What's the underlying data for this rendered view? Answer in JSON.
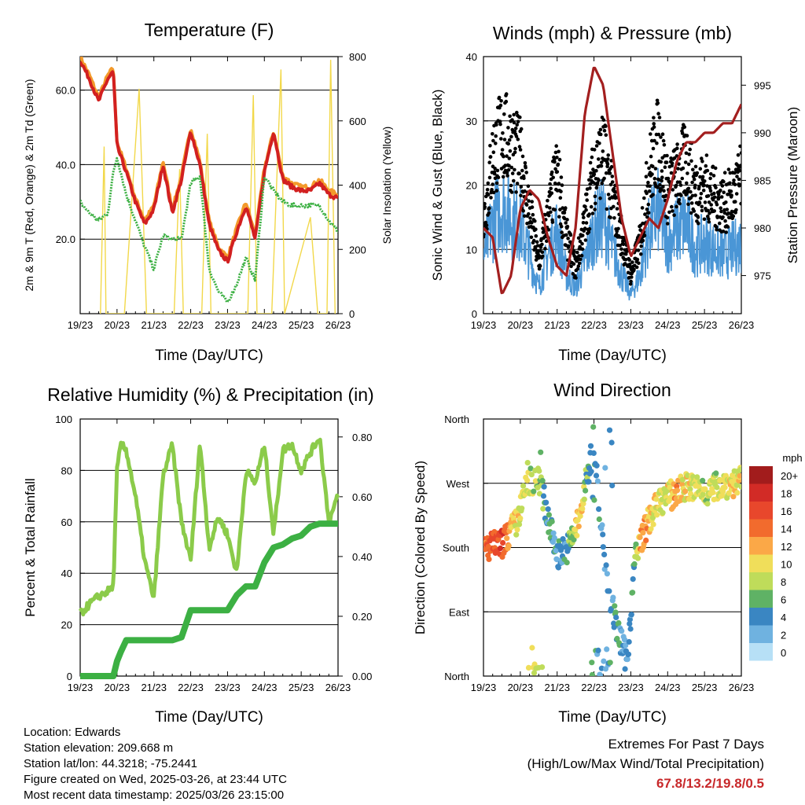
{
  "colors": {
    "temp_red": "#d22020",
    "temp_orange": "#f39a2b",
    "dewpoint_green": "#3cb043",
    "solar_yellow": "#f2d84a",
    "wind_blue": "#4a96d6",
    "gust_black": "#000000",
    "pressure_maroon": "#a31f1f",
    "rh_lightgreen": "#8bcb4a",
    "precip_green": "#3cb043",
    "extremes_red": "#c8282a"
  },
  "x_ticks": [
    "19/23",
    "20/23",
    "21/23",
    "22/23",
    "23/23",
    "24/23",
    "25/23",
    "26/23"
  ],
  "speed_legend": {
    "title": "mph",
    "labels": [
      "20+",
      "18",
      "16",
      "14",
      "12",
      "10",
      "8",
      "6",
      "4",
      "2",
      "0"
    ],
    "colors": [
      "#a21c1c",
      "#d22b26",
      "#e8472c",
      "#f26b2d",
      "#fba847",
      "#f0de5a",
      "#bfdc5a",
      "#5fb265",
      "#3a86c2",
      "#6fb2e0",
      "#b7e0f6"
    ]
  },
  "info": {
    "location": "Location: Edwards",
    "elevation": "Station elevation: 209.668 m",
    "latlon": "Station lat/lon: 44.3218; -75.2441",
    "created": "Figure created on Wed, 2025-03-26, at 23:44 UTC",
    "latest": "Most recent data timestamp: 2025/03/26 23:15:00"
  },
  "extremes": {
    "title": "Extremes For Past 7 Days",
    "subtitle": "(High/Low/Max Wind/Total Precipitation)",
    "values": "67.8/13.2/19.8/0.5"
  },
  "chart_data": [
    {
      "type": "line",
      "title": "Temperature (F)",
      "xlabel": "Time (Day/UTC)",
      "ylabel": "2m & 9m T (Red, Orange) & 2m Td (Green)",
      "ylabel_right": "Solar Insolation (Yellow)",
      "x_ticks": [
        "19/23",
        "20/23",
        "21/23",
        "22/23",
        "23/23",
        "24/23",
        "25/23",
        "26/23"
      ],
      "xlim": [
        0,
        7
      ],
      "ylim": [
        0,
        69
      ],
      "yticks": [
        "20.0",
        "40.0",
        "60.0"
      ],
      "ylim_right": [
        0,
        800
      ],
      "yticks_right": [
        "0",
        "200",
        "400",
        "600",
        "800"
      ],
      "x": [
        0,
        0.25,
        0.5,
        0.75,
        0.9,
        1.0,
        1.25,
        1.5,
        1.75,
        2.0,
        2.25,
        2.5,
        2.75,
        3.0,
        3.25,
        3.5,
        3.75,
        4.0,
        4.25,
        4.5,
        4.75,
        5.0,
        5.25,
        5.5,
        5.75,
        6.0,
        6.25,
        6.5,
        6.75,
        7.0
      ],
      "series": [
        {
          "name": "2m T",
          "values": [
            68,
            63,
            57,
            63,
            65,
            45,
            38,
            30,
            24,
            28,
            40,
            27,
            36,
            49,
            40,
            24,
            17,
            14,
            22,
            29,
            20,
            38,
            49,
            36,
            34,
            33,
            33,
            35,
            32,
            31
          ]
        },
        {
          "name": "9m T",
          "values": [
            69,
            64,
            58,
            64,
            66,
            46,
            39,
            31,
            25,
            29,
            41,
            28,
            37,
            50,
            41,
            25,
            18,
            15,
            23,
            30,
            21,
            39,
            49,
            37,
            35,
            34,
            34,
            36,
            33,
            32
          ]
        },
        {
          "name": "2m Td",
          "values": [
            30,
            27,
            25,
            27,
            38,
            42,
            32,
            25,
            18,
            12,
            21,
            20,
            20,
            35,
            37,
            12,
            6,
            3,
            8,
            15,
            9,
            37,
            33,
            30,
            29,
            29,
            29,
            29,
            25,
            22
          ]
        },
        {
          "name": "Solar Insolation",
          "axis": "right",
          "x": [
            0.55,
            0.65,
            0.7,
            1.2,
            1.6,
            1.8,
            2.55,
            2.7,
            2.8,
            3.3,
            3.45,
            3.55,
            4.55,
            4.7,
            4.8,
            5.2,
            5.45,
            5.55,
            6.25,
            6.45,
            6.7,
            6.8,
            6.92
          ],
          "values": [
            0,
            520,
            0,
            0,
            700,
            0,
            0,
            450,
            0,
            0,
            560,
            0,
            0,
            680,
            0,
            0,
            760,
            0,
            300,
            0,
            0,
            790,
            0
          ]
        }
      ]
    },
    {
      "type": "scatter",
      "title": "Winds (mph) & Pressure (mb)",
      "xlabel": "Time (Day/UTC)",
      "ylabel": "Sonic Wind & Gust (Blue, Black)",
      "ylabel_right": "Station Pressure (Maroon)",
      "x_ticks": [
        "19/23",
        "20/23",
        "21/23",
        "22/23",
        "23/23",
        "24/23",
        "25/23",
        "26/23"
      ],
      "xlim": [
        0,
        7
      ],
      "ylim": [
        0,
        40
      ],
      "yticks": [
        "0",
        "10",
        "20",
        "30",
        "40"
      ],
      "ylim_right": [
        971,
        998
      ],
      "yticks_right": [
        "975",
        "980",
        "985",
        "990",
        "995"
      ],
      "x": [
        0,
        0.25,
        0.5,
        0.75,
        1.0,
        1.25,
        1.5,
        1.75,
        2.0,
        2.25,
        2.5,
        2.75,
        3.0,
        3.25,
        3.5,
        3.75,
        4.0,
        4.25,
        4.5,
        4.75,
        5.0,
        5.25,
        5.5,
        5.75,
        6.0,
        6.25,
        6.5,
        6.75,
        7.0
      ],
      "series": [
        {
          "name": "Sonic Wind",
          "values": [
            9,
            14,
            17,
            15,
            14,
            9,
            4,
            9,
            13,
            6,
            4,
            8,
            13,
            15,
            10,
            6,
            3,
            6,
            13,
            16,
            11,
            13,
            14,
            10,
            11,
            10,
            9,
            10,
            11
          ]
        },
        {
          "name": "Gust",
          "values": [
            14,
            24,
            28,
            26,
            24,
            16,
            8,
            15,
            22,
            12,
            7,
            14,
            22,
            25,
            18,
            12,
            6,
            11,
            22,
            27,
            19,
            21,
            24,
            19,
            20,
            18,
            17,
            18,
            21
          ]
        },
        {
          "name": "Station Pressure",
          "axis": "right",
          "values": [
            980,
            979,
            973,
            975,
            982,
            984,
            983,
            979,
            976,
            975,
            980,
            992,
            997,
            995,
            988,
            981,
            977,
            979,
            981,
            980,
            983,
            987,
            989,
            989,
            990,
            990,
            991,
            991,
            993
          ]
        }
      ]
    },
    {
      "type": "line",
      "title": "Relative Humidity (%) & Precipitation (in)",
      "xlabel": "Time (Day/UTC)",
      "ylabel": "Percent & Total Rainfall",
      "x_ticks": [
        "19/23",
        "20/23",
        "21/23",
        "22/23",
        "23/23",
        "24/23",
        "25/23",
        "26/23"
      ],
      "xlim": [
        0,
        7
      ],
      "ylim": [
        0,
        100
      ],
      "yticks": [
        "0",
        "20",
        "40",
        "60",
        "80",
        "100"
      ],
      "ylim_right": [
        0,
        0.86
      ],
      "yticks_right": [
        "0.00",
        "0.20",
        "0.40",
        "0.60",
        "0.80"
      ],
      "x": [
        0,
        0.25,
        0.5,
        0.75,
        0.9,
        1.0,
        1.1,
        1.25,
        1.5,
        1.75,
        2.0,
        2.25,
        2.5,
        2.75,
        3.0,
        3.25,
        3.5,
        3.75,
        4.0,
        4.25,
        4.5,
        4.75,
        5.0,
        5.25,
        5.5,
        5.75,
        6.0,
        6.25,
        6.5,
        6.75,
        7.0
      ],
      "series": [
        {
          "name": "Relative Humidity",
          "values": [
            24,
            28,
            31,
            33,
            35,
            80,
            90,
            88,
            70,
            45,
            30,
            78,
            90,
            60,
            45,
            91,
            50,
            62,
            55,
            40,
            80,
            75,
            90,
            55,
            88,
            90,
            80,
            87,
            93,
            60,
            70
          ]
        },
        {
          "name": "Precipitation",
          "axis": "right",
          "values": [
            0,
            0,
            0,
            0,
            0,
            0.05,
            0.08,
            0.12,
            0.12,
            0.12,
            0.12,
            0.12,
            0.12,
            0.13,
            0.22,
            0.22,
            0.22,
            0.22,
            0.22,
            0.27,
            0.3,
            0.3,
            0.38,
            0.43,
            0.44,
            0.46,
            0.47,
            0.5,
            0.51,
            0.51,
            0.51
          ]
        }
      ]
    },
    {
      "type": "scatter",
      "title": "Wind Direction",
      "xlabel": "Time (Day/UTC)",
      "ylabel": "Direction (Colored By Speed)",
      "x_ticks": [
        "19/23",
        "20/23",
        "21/23",
        "22/23",
        "23/23",
        "24/23",
        "25/23",
        "26/23"
      ],
      "xlim": [
        0,
        7
      ],
      "ylim": [
        0,
        360
      ],
      "yticks": [
        "North",
        "East",
        "South",
        "West",
        "North"
      ],
      "x": [
        0,
        0.5,
        0.9,
        1.2,
        1.5,
        1.8,
        2.0,
        2.3,
        2.6,
        2.8,
        3.0,
        3.3,
        3.6,
        3.9,
        4.1,
        4.3,
        4.6,
        4.9,
        5.2,
        5.5,
        5.8,
        6.1,
        6.4,
        6.7,
        7.0
      ],
      "direction": [
        180,
        185,
        215,
        270,
        280,
        210,
        170,
        180,
        220,
        275,
        320,
        150,
        70,
        20,
        160,
        195,
        230,
        250,
        255,
        265,
        262,
        258,
        268,
        270,
        272
      ],
      "speed": [
        14,
        16,
        10,
        9,
        8,
        4,
        3,
        5,
        12,
        6,
        4,
        3,
        5,
        2,
        6,
        13,
        10,
        8,
        12,
        10,
        9,
        8,
        9,
        10,
        10
      ]
    }
  ]
}
